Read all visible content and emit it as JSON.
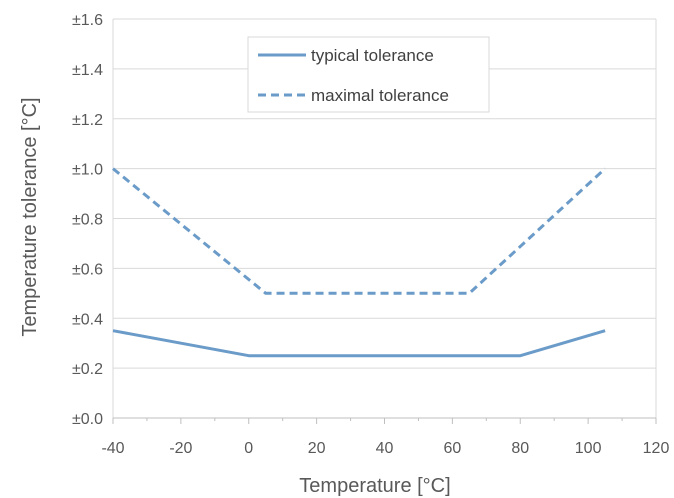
{
  "chart_data": {
    "type": "line",
    "xlabel": "Temperature [°C]",
    "ylabel": "Temperature tolerance [°C]",
    "xlim": [
      -40,
      120
    ],
    "ylim": [
      0.0,
      1.6
    ],
    "x_ticks": [
      -40,
      -20,
      0,
      20,
      40,
      60,
      80,
      100,
      120
    ],
    "x_tick_labels": [
      "-40",
      "-20",
      "0",
      "20",
      "40",
      "60",
      "80",
      "100",
      "120"
    ],
    "y_ticks": [
      0.0,
      0.2,
      0.4,
      0.6,
      0.8,
      1.0,
      1.2,
      1.4,
      1.6
    ],
    "y_tick_labels": [
      "±0.0",
      "±0.2",
      "±0.4",
      "±0.6",
      "±0.8",
      "±1.0",
      "±1.2",
      "±1.4",
      "±1.6"
    ],
    "grid": "horizontal",
    "legend_position": "top-center",
    "series": [
      {
        "name": "typical tolerance",
        "style": "solid",
        "color": "#6b9bc8",
        "x": [
          -40,
          0,
          80,
          105
        ],
        "y": [
          0.35,
          0.25,
          0.25,
          0.35
        ]
      },
      {
        "name": "maximal tolerance",
        "style": "dashed",
        "color": "#6b9bc8",
        "x": [
          -40,
          5,
          65,
          105
        ],
        "y": [
          1.0,
          0.5,
          0.5,
          1.0
        ]
      }
    ]
  }
}
